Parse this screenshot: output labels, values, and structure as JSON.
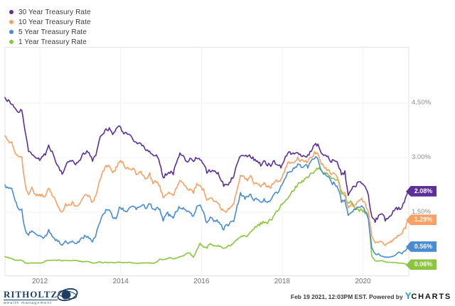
{
  "chart_data": {
    "type": "line",
    "title": "",
    "legend_position": "top-left",
    "grid": true,
    "x_tick_labels": [
      "2012",
      "2014",
      "2016",
      "2018",
      "2020"
    ],
    "y_tick_labels": [
      "4.50%",
      "3.00%",
      "1.50%"
    ],
    "y_tick_values": [
      4.5,
      3.0,
      1.5
    ],
    "y_axis_unit": "%",
    "ylim": [
      -0.25,
      6.05
    ],
    "x_range": [
      "2011-02",
      "2021-02"
    ],
    "frequency": "monthly",
    "months": [
      "2011-02",
      "2011-03",
      "2011-04",
      "2011-05",
      "2011-06",
      "2011-07",
      "2011-08",
      "2011-09",
      "2011-10",
      "2011-11",
      "2011-12",
      "2012-01",
      "2012-02",
      "2012-03",
      "2012-04",
      "2012-05",
      "2012-06",
      "2012-07",
      "2012-08",
      "2012-09",
      "2012-10",
      "2012-11",
      "2012-12",
      "2013-01",
      "2013-02",
      "2013-03",
      "2013-04",
      "2013-05",
      "2013-06",
      "2013-07",
      "2013-08",
      "2013-09",
      "2013-10",
      "2013-11",
      "2013-12",
      "2014-01",
      "2014-02",
      "2014-03",
      "2014-04",
      "2014-05",
      "2014-06",
      "2014-07",
      "2014-08",
      "2014-09",
      "2014-10",
      "2014-11",
      "2014-12",
      "2015-01",
      "2015-02",
      "2015-03",
      "2015-04",
      "2015-05",
      "2015-06",
      "2015-07",
      "2015-08",
      "2015-09",
      "2015-10",
      "2015-11",
      "2015-12",
      "2016-01",
      "2016-02",
      "2016-03",
      "2016-04",
      "2016-05",
      "2016-06",
      "2016-07",
      "2016-08",
      "2016-09",
      "2016-10",
      "2016-11",
      "2016-12",
      "2017-01",
      "2017-02",
      "2017-03",
      "2017-04",
      "2017-05",
      "2017-06",
      "2017-07",
      "2017-08",
      "2017-09",
      "2017-10",
      "2017-11",
      "2017-12",
      "2018-01",
      "2018-02",
      "2018-03",
      "2018-04",
      "2018-05",
      "2018-06",
      "2018-07",
      "2018-08",
      "2018-09",
      "2018-10",
      "2018-11",
      "2018-12",
      "2019-01",
      "2019-02",
      "2019-03",
      "2019-04",
      "2019-05",
      "2019-06",
      "2019-07",
      "2019-08",
      "2019-09",
      "2019-10",
      "2019-11",
      "2019-12",
      "2020-01",
      "2020-02",
      "2020-03",
      "2020-04",
      "2020-05",
      "2020-06",
      "2020-07",
      "2020-08",
      "2020-09",
      "2020-10",
      "2020-11",
      "2020-12",
      "2021-01",
      "2021-02"
    ],
    "series": [
      {
        "name": "30 Year Treasury Rate",
        "color": "#5c2e97",
        "end_label": "2.08%",
        "values": [
          4.65,
          4.55,
          4.5,
          4.35,
          4.25,
          4.3,
          3.7,
          3.2,
          3.1,
          3.0,
          2.95,
          3.0,
          3.1,
          3.3,
          3.15,
          2.9,
          2.7,
          2.55,
          2.75,
          2.9,
          2.9,
          2.8,
          2.9,
          3.1,
          3.15,
          3.15,
          2.9,
          3.1,
          3.5,
          3.65,
          3.75,
          3.8,
          3.65,
          3.8,
          3.9,
          3.7,
          3.65,
          3.6,
          3.5,
          3.4,
          3.4,
          3.3,
          3.2,
          3.2,
          3.05,
          3.05,
          2.85,
          2.45,
          2.55,
          2.6,
          2.55,
          2.9,
          3.1,
          3.05,
          2.9,
          2.95,
          2.9,
          3.0,
          2.95,
          2.85,
          2.6,
          2.65,
          2.6,
          2.6,
          2.45,
          2.25,
          2.25,
          2.35,
          2.5,
          2.85,
          3.05,
          3.05,
          3.05,
          3.05,
          2.95,
          2.9,
          2.8,
          2.9,
          2.8,
          2.8,
          2.9,
          2.8,
          2.75,
          2.95,
          3.15,
          3.1,
          3.1,
          3.15,
          3.05,
          3.0,
          3.05,
          3.2,
          3.35,
          3.35,
          3.1,
          3.05,
          3.0,
          2.9,
          2.95,
          2.8,
          2.55,
          2.6,
          2.0,
          2.15,
          2.2,
          2.3,
          2.3,
          2.2,
          1.95,
          1.35,
          1.25,
          1.4,
          1.5,
          1.3,
          1.35,
          1.45,
          1.6,
          1.6,
          1.65,
          1.85,
          2.08
        ]
      },
      {
        "name": "10 Year Treasury Rate",
        "color": "#f8a165",
        "end_label": "1.29%",
        "values": [
          3.6,
          3.45,
          3.45,
          3.15,
          3.0,
          3.0,
          2.25,
          1.95,
          2.15,
          2.0,
          1.95,
          1.95,
          1.95,
          2.15,
          2.0,
          1.8,
          1.6,
          1.5,
          1.7,
          1.7,
          1.75,
          1.65,
          1.7,
          1.9,
          1.95,
          1.95,
          1.75,
          1.95,
          2.3,
          2.6,
          2.75,
          2.8,
          2.6,
          2.7,
          2.9,
          2.85,
          2.7,
          2.7,
          2.7,
          2.55,
          2.6,
          2.55,
          2.4,
          2.55,
          2.3,
          2.35,
          2.2,
          1.9,
          2.0,
          2.05,
          1.95,
          2.2,
          2.35,
          2.3,
          2.15,
          2.15,
          2.05,
          2.25,
          2.25,
          2.1,
          1.8,
          1.9,
          1.8,
          1.8,
          1.65,
          1.5,
          1.55,
          1.65,
          1.75,
          2.15,
          2.5,
          2.45,
          2.4,
          2.5,
          2.3,
          2.3,
          2.2,
          2.3,
          2.2,
          2.2,
          2.35,
          2.35,
          2.4,
          2.6,
          2.85,
          2.85,
          2.85,
          3.0,
          2.9,
          2.9,
          2.9,
          3.0,
          3.15,
          3.1,
          2.85,
          2.7,
          2.65,
          2.55,
          2.55,
          2.4,
          2.05,
          2.05,
          1.6,
          1.7,
          1.7,
          1.8,
          1.85,
          1.75,
          1.5,
          0.85,
          0.65,
          0.7,
          0.7,
          0.6,
          0.65,
          0.7,
          0.8,
          0.85,
          0.92,
          1.1,
          1.29
        ]
      },
      {
        "name": "5 Year Treasury Rate",
        "color": "#4a8cd3",
        "end_label": "0.56%",
        "values": [
          2.25,
          2.15,
          2.15,
          1.85,
          1.6,
          1.55,
          1.0,
          0.9,
          1.0,
          0.9,
          0.85,
          0.8,
          0.85,
          1.0,
          0.85,
          0.75,
          0.7,
          0.6,
          0.7,
          0.65,
          0.7,
          0.65,
          0.7,
          0.8,
          0.85,
          0.8,
          0.7,
          0.85,
          1.2,
          1.4,
          1.55,
          1.6,
          1.35,
          1.35,
          1.6,
          1.6,
          1.5,
          1.6,
          1.7,
          1.6,
          1.65,
          1.7,
          1.6,
          1.75,
          1.55,
          1.6,
          1.6,
          1.3,
          1.5,
          1.4,
          1.35,
          1.55,
          1.65,
          1.6,
          1.5,
          1.5,
          1.4,
          1.65,
          1.7,
          1.5,
          1.2,
          1.35,
          1.25,
          1.3,
          1.15,
          1.05,
          1.15,
          1.2,
          1.25,
          1.65,
          2.0,
          1.9,
          1.9,
          2.0,
          1.85,
          1.85,
          1.8,
          1.85,
          1.8,
          1.85,
          2.0,
          2.05,
          2.2,
          2.4,
          2.6,
          2.65,
          2.7,
          2.8,
          2.75,
          2.8,
          2.75,
          2.9,
          3.0,
          2.95,
          2.65,
          2.55,
          2.5,
          2.3,
          2.3,
          2.15,
          1.8,
          1.85,
          1.45,
          1.55,
          1.55,
          1.65,
          1.7,
          1.55,
          1.3,
          0.55,
          0.35,
          0.35,
          0.3,
          0.27,
          0.27,
          0.28,
          0.32,
          0.4,
          0.38,
          0.45,
          0.56
        ]
      },
      {
        "name": "1 Year Treasury Rate",
        "color": "#8bc53f",
        "end_label": "0.06%",
        "values": [
          0.28,
          0.25,
          0.24,
          0.19,
          0.18,
          0.19,
          0.11,
          0.1,
          0.11,
          0.11,
          0.11,
          0.11,
          0.16,
          0.19,
          0.18,
          0.18,
          0.19,
          0.17,
          0.18,
          0.17,
          0.18,
          0.18,
          0.16,
          0.14,
          0.15,
          0.14,
          0.11,
          0.11,
          0.14,
          0.12,
          0.13,
          0.12,
          0.12,
          0.12,
          0.13,
          0.12,
          0.12,
          0.13,
          0.11,
          0.1,
          0.1,
          0.11,
          0.11,
          0.11,
          0.1,
          0.13,
          0.21,
          0.2,
          0.22,
          0.25,
          0.23,
          0.24,
          0.28,
          0.3,
          0.38,
          0.37,
          0.26,
          0.48,
          0.65,
          0.54,
          0.53,
          0.66,
          0.56,
          0.59,
          0.55,
          0.51,
          0.57,
          0.59,
          0.66,
          0.74,
          0.85,
          0.83,
          0.82,
          1.0,
          1.05,
          1.12,
          1.2,
          1.22,
          1.23,
          1.28,
          1.4,
          1.55,
          1.7,
          1.8,
          1.9,
          2.05,
          2.15,
          2.25,
          2.33,
          2.4,
          2.45,
          2.55,
          2.65,
          2.7,
          2.63,
          2.57,
          2.54,
          2.45,
          2.4,
          2.35,
          2.0,
          1.95,
          1.75,
          1.8,
          1.6,
          1.55,
          1.55,
          1.5,
          1.4,
          0.3,
          0.17,
          0.16,
          0.17,
          0.14,
          0.13,
          0.12,
          0.12,
          0.11,
          0.1,
          0.08,
          0.06
        ]
      }
    ]
  },
  "footer": {
    "brand": {
      "name": "RITHOLTZ",
      "tagline": "wealth management"
    },
    "attribution": {
      "text": "Feb 19 2021, 12:03PM EST. Powered by",
      "provider_y": "Y",
      "provider_charts": "CHARTS"
    }
  }
}
